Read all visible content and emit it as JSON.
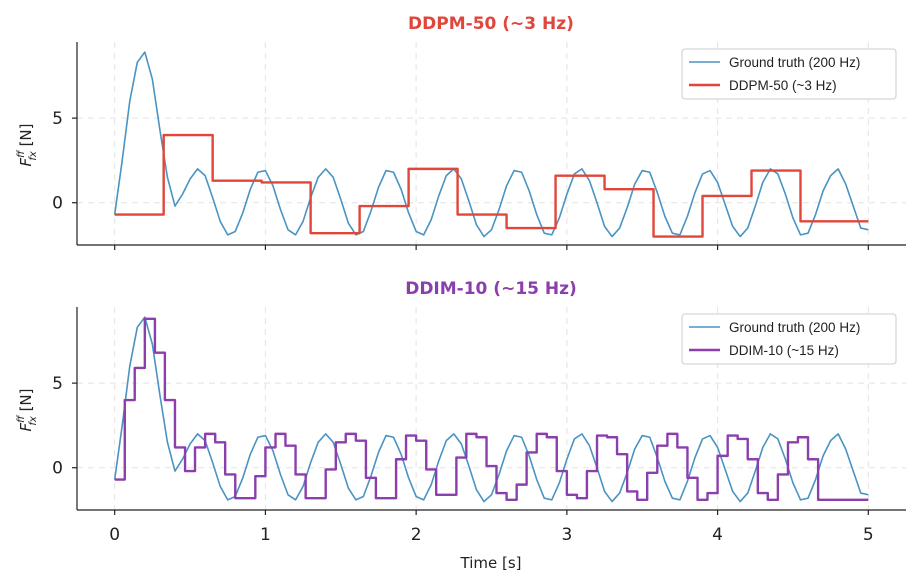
{
  "chart_data": [
    {
      "type": "line",
      "title": "DDPM-50  (~3 Hz)",
      "title_color": "#e0463a",
      "ylabel_main": "F",
      "ylabel_sup": "ff",
      "ylabel_sub": "fx",
      "ylabel_unit": " [N]",
      "xlabel": "",
      "xlim": [
        -0.25,
        5.25
      ],
      "ylim": [
        -2.5,
        9.5
      ],
      "xticks": [
        0,
        1,
        2,
        3,
        4,
        5
      ],
      "xtick_labels": [
        "0",
        "1",
        "2",
        "3",
        "4",
        "5"
      ],
      "yticks": [
        0,
        5
      ],
      "ytick_labels": [
        "0",
        "5"
      ],
      "grid": true,
      "legend_position": "top-right",
      "series": [
        {
          "name": "Ground truth (200 Hz)",
          "color": "#4a93c3",
          "style": "line",
          "x": [
            0,
            0.05,
            0.1,
            0.15,
            0.2,
            0.25,
            0.3,
            0.35,
            0.4,
            0.45,
            0.5,
            0.55,
            0.6,
            0.65,
            0.7,
            0.75,
            0.8,
            0.85,
            0.9,
            0.95,
            1.0,
            1.05,
            1.1,
            1.15,
            1.2,
            1.25,
            1.3,
            1.35,
            1.4,
            1.45,
            1.5,
            1.55,
            1.6,
            1.65,
            1.7,
            1.75,
            1.8,
            1.85,
            1.9,
            1.95,
            2.0,
            2.05,
            2.1,
            2.15,
            2.2,
            2.25,
            2.3,
            2.35,
            2.4,
            2.45,
            2.5,
            2.55,
            2.6,
            2.65,
            2.7,
            2.75,
            2.8,
            2.85,
            2.9,
            2.95,
            3.0,
            3.05,
            3.1,
            3.15,
            3.2,
            3.25,
            3.3,
            3.35,
            3.4,
            3.45,
            3.5,
            3.55,
            3.6,
            3.65,
            3.7,
            3.75,
            3.8,
            3.85,
            3.9,
            3.95,
            4.0,
            4.05,
            4.1,
            4.15,
            4.2,
            4.25,
            4.3,
            4.35,
            4.4,
            4.45,
            4.5,
            4.55,
            4.6,
            4.65,
            4.7,
            4.75,
            4.8,
            4.85,
            4.9,
            4.95,
            5.0
          ],
          "y": [
            -0.7,
            2.5,
            6.0,
            8.3,
            8.9,
            7.3,
            4.3,
            1.5,
            -0.2,
            0.5,
            1.4,
            2.0,
            1.6,
            0.3,
            -1.1,
            -1.9,
            -1.7,
            -0.6,
            0.8,
            1.8,
            1.9,
            1.0,
            -0.4,
            -1.6,
            -1.9,
            -1.1,
            0.3,
            1.5,
            2.0,
            1.5,
            0.2,
            -1.2,
            -1.9,
            -1.7,
            -0.5,
            0.9,
            1.9,
            1.8,
            0.8,
            -0.6,
            -1.7,
            -1.9,
            -1.0,
            0.4,
            1.6,
            2.0,
            1.4,
            0.1,
            -1.3,
            -2.0,
            -1.6,
            -0.4,
            1.0,
            1.9,
            1.8,
            0.7,
            -0.7,
            -1.8,
            -1.9,
            -0.9,
            0.5,
            1.7,
            2.0,
            1.3,
            0.0,
            -1.4,
            -2.0,
            -1.5,
            -0.3,
            1.1,
            1.9,
            1.8,
            0.6,
            -0.8,
            -1.8,
            -1.9,
            -0.8,
            0.6,
            1.7,
            1.9,
            1.2,
            -0.1,
            -1.4,
            -2.0,
            -1.5,
            -0.2,
            1.2,
            2.0,
            1.7,
            0.5,
            -0.9,
            -1.9,
            -1.8,
            -0.7,
            0.7,
            1.6,
            2.0,
            1.1,
            -0.2,
            -1.5,
            -1.6
          ]
        },
        {
          "name": "DDPM-50  (~3 Hz)",
          "color": "#e0463a",
          "style": "step",
          "x": [
            0,
            0.325,
            0.65,
            0.975,
            1.3,
            1.625,
            1.95,
            2.275,
            2.6,
            2.925,
            3.25,
            3.575,
            3.9,
            4.225,
            4.55,
            5.0
          ],
          "y": [
            -0.7,
            4.0,
            1.3,
            1.2,
            -1.8,
            -0.2,
            2.0,
            -0.7,
            -1.5,
            1.6,
            0.8,
            -2.0,
            0.4,
            1.9,
            -1.1,
            -1.1
          ]
        }
      ]
    },
    {
      "type": "line",
      "title": "DDIM-10  (~15 Hz)",
      "title_color": "#8b3fad",
      "ylabel_main": "F",
      "ylabel_sup": "ff",
      "ylabel_sub": "fx",
      "ylabel_unit": " [N]",
      "xlabel": "Time [s]",
      "xlim": [
        -0.25,
        5.25
      ],
      "ylim": [
        -2.5,
        9.5
      ],
      "xticks": [
        0,
        1,
        2,
        3,
        4,
        5
      ],
      "xtick_labels": [
        "0",
        "1",
        "2",
        "3",
        "4",
        "5"
      ],
      "yticks": [
        0,
        5
      ],
      "ytick_labels": [
        "0",
        "5"
      ],
      "grid": true,
      "legend_position": "top-right",
      "series": [
        {
          "name": "Ground truth (200 Hz)",
          "color": "#4a93c3",
          "style": "line",
          "x": [
            0,
            0.05,
            0.1,
            0.15,
            0.2,
            0.25,
            0.3,
            0.35,
            0.4,
            0.45,
            0.5,
            0.55,
            0.6,
            0.65,
            0.7,
            0.75,
            0.8,
            0.85,
            0.9,
            0.95,
            1.0,
            1.05,
            1.1,
            1.15,
            1.2,
            1.25,
            1.3,
            1.35,
            1.4,
            1.45,
            1.5,
            1.55,
            1.6,
            1.65,
            1.7,
            1.75,
            1.8,
            1.85,
            1.9,
            1.95,
            2.0,
            2.05,
            2.1,
            2.15,
            2.2,
            2.25,
            2.3,
            2.35,
            2.4,
            2.45,
            2.5,
            2.55,
            2.6,
            2.65,
            2.7,
            2.75,
            2.8,
            2.85,
            2.9,
            2.95,
            3.0,
            3.05,
            3.1,
            3.15,
            3.2,
            3.25,
            3.3,
            3.35,
            3.4,
            3.45,
            3.5,
            3.55,
            3.6,
            3.65,
            3.7,
            3.75,
            3.8,
            3.85,
            3.9,
            3.95,
            4.0,
            4.05,
            4.1,
            4.15,
            4.2,
            4.25,
            4.3,
            4.35,
            4.4,
            4.45,
            4.5,
            4.55,
            4.6,
            4.65,
            4.7,
            4.75,
            4.8,
            4.85,
            4.9,
            4.95,
            5.0
          ],
          "y": [
            -0.7,
            2.5,
            6.0,
            8.3,
            8.9,
            7.3,
            4.3,
            1.5,
            -0.2,
            0.5,
            1.4,
            2.0,
            1.6,
            0.3,
            -1.1,
            -1.9,
            -1.7,
            -0.6,
            0.8,
            1.8,
            1.9,
            1.0,
            -0.4,
            -1.6,
            -1.9,
            -1.1,
            0.3,
            1.5,
            2.0,
            1.5,
            0.2,
            -1.2,
            -1.9,
            -1.7,
            -0.5,
            0.9,
            1.9,
            1.8,
            0.8,
            -0.6,
            -1.7,
            -1.9,
            -1.0,
            0.4,
            1.6,
            2.0,
            1.4,
            0.1,
            -1.3,
            -2.0,
            -1.6,
            -0.4,
            1.0,
            1.9,
            1.8,
            0.7,
            -0.7,
            -1.8,
            -1.9,
            -0.9,
            0.5,
            1.7,
            2.0,
            1.3,
            0.0,
            -1.4,
            -2.0,
            -1.5,
            -0.3,
            1.1,
            1.9,
            1.8,
            0.6,
            -0.8,
            -1.8,
            -1.9,
            -0.8,
            0.6,
            1.7,
            1.9,
            1.2,
            -0.1,
            -1.4,
            -2.0,
            -1.5,
            -0.2,
            1.2,
            2.0,
            1.7,
            0.5,
            -0.9,
            -1.9,
            -1.8,
            -0.7,
            0.7,
            1.6,
            2.0,
            1.1,
            -0.2,
            -1.5,
            -1.6
          ]
        },
        {
          "name": "DDIM-10  (~15 Hz)",
          "color": "#8b3fad",
          "style": "step",
          "x": [
            0,
            0.067,
            0.133,
            0.2,
            0.267,
            0.333,
            0.4,
            0.467,
            0.533,
            0.6,
            0.667,
            0.733,
            0.8,
            0.867,
            0.933,
            1.0,
            1.067,
            1.133,
            1.2,
            1.267,
            1.333,
            1.4,
            1.467,
            1.533,
            1.6,
            1.667,
            1.733,
            1.8,
            1.867,
            1.933,
            2.0,
            2.067,
            2.133,
            2.2,
            2.267,
            2.333,
            2.4,
            2.467,
            2.533,
            2.6,
            2.667,
            2.733,
            2.8,
            2.867,
            2.933,
            3.0,
            3.067,
            3.133,
            3.2,
            3.267,
            3.333,
            3.4,
            3.467,
            3.533,
            3.6,
            3.667,
            3.733,
            3.8,
            3.867,
            3.933,
            4.0,
            4.067,
            4.133,
            4.2,
            4.267,
            4.333,
            4.4,
            4.467,
            4.533,
            4.6,
            4.667,
            4.733,
            4.8,
            4.867,
            4.933,
            5.0
          ],
          "y": [
            -0.7,
            4.0,
            5.9,
            8.8,
            6.8,
            4.0,
            1.2,
            -0.2,
            1.2,
            2.0,
            1.5,
            -0.4,
            -1.8,
            -1.8,
            -0.5,
            1.2,
            2.0,
            1.3,
            -0.4,
            -1.8,
            -1.8,
            -0.1,
            1.5,
            2.0,
            1.6,
            -0.6,
            -1.8,
            -1.8,
            0.5,
            1.9,
            1.6,
            -0.1,
            -1.6,
            -1.6,
            0.6,
            2.0,
            1.8,
            0.1,
            -1.5,
            -1.9,
            -1.0,
            0.9,
            2.0,
            1.8,
            -0.2,
            -1.6,
            -1.8,
            -0.2,
            1.9,
            1.8,
            0.8,
            -1.4,
            -1.9,
            -0.3,
            1.3,
            2.0,
            1.2,
            -0.6,
            -1.9,
            -1.5,
            0.7,
            1.9,
            1.7,
            0.5,
            -1.5,
            -1.9,
            -0.4,
            1.5,
            1.8,
            0.5,
            -1.9,
            -1.9,
            -1.9,
            -1.9,
            -1.9,
            -1.9
          ]
        }
      ]
    }
  ]
}
